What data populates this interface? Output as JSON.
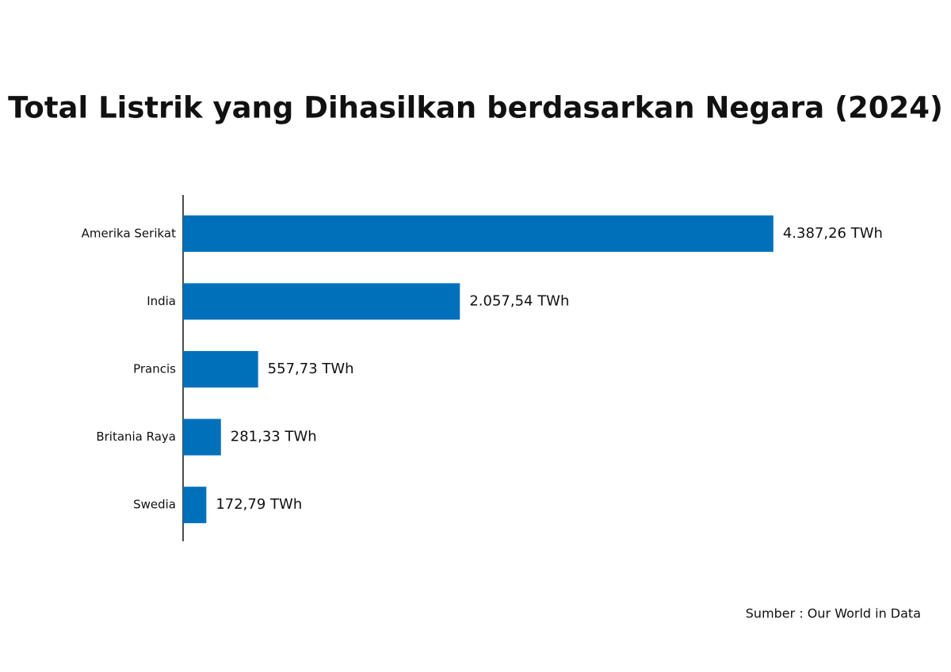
{
  "chart_data": {
    "type": "hbar",
    "title": "Total Listrik yang Dihasilkan berdasarkan Negara (2024)",
    "categories": [
      "Amerika Serikat",
      "India",
      "Prancis",
      "Britania Raya",
      "Swedia"
    ],
    "values": [
      4387.26,
      2057.54,
      557.73,
      281.33,
      172.79
    ],
    "value_labels": [
      "4.387,26 TWh",
      "2.057,54 TWh",
      "557,73 TWh",
      "281,33 TWh",
      "172,79 TWh"
    ],
    "color": "#0070bb",
    "xlim": [
      0,
      4400
    ],
    "source": "Sumber : Our World in Data"
  }
}
